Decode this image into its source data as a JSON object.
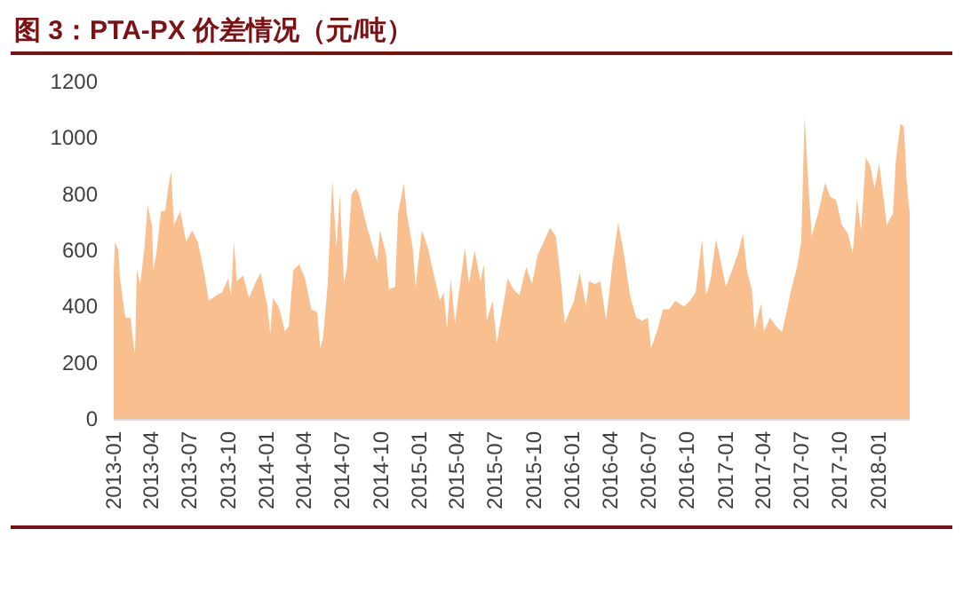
{
  "chart_data": {
    "type": "area",
    "title": "图 3：PTA-PX 价差情况（元/吨）",
    "xlim": [
      "2013-01-01",
      "2018-03-17"
    ],
    "xticks": [
      "2013-01",
      "2013-04",
      "2013-07",
      "2013-10",
      "2014-01",
      "2014-04",
      "2014-07",
      "2014-10",
      "2015-01",
      "2015-04",
      "2015-07",
      "2015-10",
      "2016-01",
      "2016-04",
      "2016-07",
      "2016-10",
      "2017-01",
      "2017-04",
      "2017-07",
      "2017-10",
      "2018-01"
    ],
    "ylim": [
      0,
      1200
    ],
    "yticks": [
      0,
      200,
      400,
      600,
      800,
      1000,
      1200
    ],
    "series": [
      {
        "color": "#f9bf8f",
        "x": [
          "2013-01-01",
          "2013-01-04",
          "2013-01-12",
          "2013-01-16",
          "2013-01-22",
          "2013-01-29",
          "2013-02-10",
          "2013-02-17",
          "2013-02-21",
          "2013-02-25",
          "2013-03-05",
          "2013-03-15",
          "2013-03-23",
          "2013-04-02",
          "2013-04-06",
          "2013-04-13",
          "2013-04-24",
          "2013-05-04",
          "2013-05-11",
          "2013-05-18",
          "2013-05-25",
          "2013-06-09",
          "2013-06-23",
          "2013-07-07",
          "2013-07-21",
          "2013-08-05",
          "2013-08-16",
          "2013-09-03",
          "2013-09-17",
          "2013-10-01",
          "2013-10-08",
          "2013-10-15",
          "2013-10-22",
          "2013-11-06",
          "2013-11-20",
          "2013-12-04",
          "2013-12-18",
          "2014-01-03",
          "2014-01-10",
          "2014-01-16",
          "2014-01-30",
          "2014-02-14",
          "2014-02-23",
          "2014-03-06",
          "2014-03-20",
          "2014-04-03",
          "2014-04-18",
          "2014-05-02",
          "2014-05-09",
          "2014-05-16",
          "2014-05-27",
          "2014-06-07",
          "2014-06-17",
          "2014-06-25",
          "2014-07-05",
          "2014-07-12",
          "2014-07-23",
          "2014-08-03",
          "2014-08-10",
          "2014-08-24",
          "2014-09-08",
          "2014-09-22",
          "2014-09-29",
          "2014-10-13",
          "2014-10-20",
          "2014-11-04",
          "2014-11-11",
          "2014-11-25",
          "2014-12-02",
          "2014-12-16",
          "2014-12-23",
          "2015-01-07",
          "2015-01-21",
          "2015-02-05",
          "2015-02-19",
          "2015-02-28",
          "2015-03-08",
          "2015-03-17",
          "2015-03-27",
          "2015-04-08",
          "2015-04-20",
          "2015-04-29",
          "2015-05-13",
          "2015-05-27",
          "2015-06-04",
          "2015-06-11",
          "2015-06-25",
          "2015-07-05",
          "2015-07-31",
          "2015-08-14",
          "2015-08-28",
          "2015-09-13",
          "2015-09-27",
          "2015-10-10",
          "2015-11-09",
          "2015-11-23",
          "2015-12-07",
          "2015-12-14",
          "2016-01-05",
          "2016-01-19",
          "2016-02-03",
          "2016-02-10",
          "2016-02-24",
          "2016-03-08",
          "2016-03-22",
          "2016-04-06",
          "2016-04-20",
          "2016-05-04",
          "2016-05-18",
          "2016-06-02",
          "2016-06-16",
          "2016-06-30",
          "2016-07-07",
          "2016-07-21",
          "2016-08-05",
          "2016-08-20",
          "2016-09-03",
          "2016-09-24",
          "2016-10-08",
          "2016-10-22",
          "2016-11-06",
          "2016-11-16",
          "2016-11-27",
          "2016-12-09",
          "2016-12-18",
          "2017-01-02",
          "2017-01-17",
          "2017-01-31",
          "2017-02-12",
          "2017-02-21",
          "2017-03-05",
          "2017-03-12",
          "2017-03-27",
          "2017-04-03",
          "2017-04-17",
          "2017-05-02",
          "2017-05-16",
          "2017-05-27",
          "2017-06-07",
          "2017-06-21",
          "2017-07-01",
          "2017-07-09",
          "2017-07-16",
          "2017-07-26",
          "2017-08-10",
          "2017-08-27",
          "2017-09-08",
          "2017-09-22",
          "2017-10-06",
          "2017-10-20",
          "2017-11-01",
          "2017-11-11",
          "2017-11-21",
          "2017-12-02",
          "2017-12-13",
          "2017-12-23",
          "2018-01-03",
          "2018-01-14",
          "2018-01-21",
          "2018-02-05",
          "2018-02-12",
          "2018-02-23",
          "2018-03-03",
          "2018-03-10",
          "2018-03-17"
        ],
        "values": [
          520,
          630,
          600,
          500,
          430,
          360,
          360,
          270,
          230,
          530,
          480,
          600,
          760,
          690,
          530,
          590,
          740,
          740,
          820,
          880,
          690,
          740,
          630,
          670,
          630,
          520,
          420,
          440,
          450,
          500,
          440,
          630,
          490,
          510,
          430,
          480,
          520,
          400,
          300,
          430,
          400,
          310,
          330,
          530,
          550,
          500,
          390,
          380,
          250,
          290,
          480,
          850,
          610,
          800,
          480,
          540,
          800,
          820,
          800,
          710,
          630,
          560,
          670,
          590,
          460,
          470,
          730,
          840,
          730,
          610,
          470,
          670,
          610,
          510,
          420,
          450,
          320,
          500,
          340,
          480,
          610,
          480,
          600,
          490,
          550,
          350,
          420,
          270,
          500,
          460,
          440,
          540,
          480,
          580,
          680,
          650,
          460,
          340,
          420,
          520,
          400,
          490,
          480,
          490,
          350,
          550,
          700,
          580,
          440,
          360,
          350,
          360,
          250,
          310,
          390,
          390,
          420,
          400,
          420,
          450,
          640,
          440,
          500,
          640,
          580,
          470,
          530,
          590,
          660,
          530,
          460,
          320,
          410,
          310,
          360,
          330,
          310,
          380,
          460,
          540,
          630,
          1080,
          880,
          650,
          730,
          840,
          790,
          780,
          690,
          660,
          590,
          780,
          670,
          930,
          900,
          820,
          910,
          780,
          690,
          730,
          920,
          1050,
          1040,
          840,
          730
        ]
      }
    ]
  }
}
